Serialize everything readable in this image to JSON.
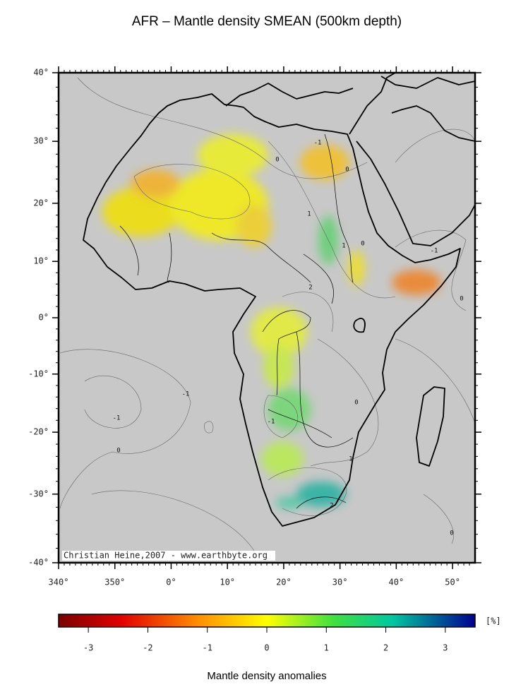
{
  "title": "AFR – Mantle density SMEAN (500km depth)",
  "map": {
    "credit": "Christian Heine,2007 - www.earthbyte.org",
    "xlim": [
      340,
      54
    ],
    "ylim": [
      -40,
      40
    ],
    "xticks": [
      {
        "value": 340,
        "label": "340°"
      },
      {
        "value": 350,
        "label": "350°"
      },
      {
        "value": 0,
        "label": "0°"
      },
      {
        "value": 10,
        "label": "10°"
      },
      {
        "value": 20,
        "label": "20°"
      },
      {
        "value": 30,
        "label": "30°"
      },
      {
        "value": 40,
        "label": "40°"
      },
      {
        "value": 50,
        "label": "50°"
      }
    ],
    "yticks": [
      {
        "value": 40,
        "label": "40°"
      },
      {
        "value": 30,
        "label": "30°"
      },
      {
        "value": 20,
        "label": "20°"
      },
      {
        "value": 10,
        "label": "10°"
      },
      {
        "value": 0,
        "label": "0°"
      },
      {
        "value": -10,
        "label": "-10°"
      },
      {
        "value": -20,
        "label": "-20°"
      },
      {
        "value": -30,
        "label": "-30°"
      },
      {
        "value": -40,
        "label": "-40°"
      }
    ],
    "contour_labels": [
      "0",
      "-1",
      "0",
      "1",
      "1",
      "0",
      "-1",
      "2",
      "0",
      "-1",
      "-1",
      "0",
      "0",
      "-1",
      "1",
      "2",
      "0"
    ]
  },
  "colorbar": {
    "label": "Mantle density anomalies",
    "unit": "[%]",
    "clim": [
      -3.5,
      3.5
    ],
    "ticks": [
      -3,
      -2,
      -1,
      0,
      1,
      2,
      3
    ]
  }
}
